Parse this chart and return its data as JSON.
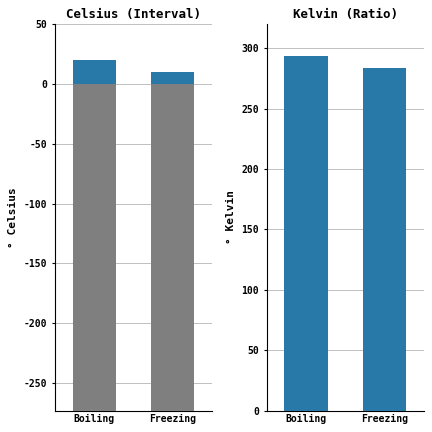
{
  "celsius_title": "Celsius (Interval)",
  "kelvin_title": "Kelvin (Ratio)",
  "categories": [
    "Boiling",
    "Freezing"
  ],
  "celsius_ylabel": "° Celsius",
  "kelvin_ylabel": "° Kelvin",
  "boiling_celsius": 20,
  "freezing_celsius": 10,
  "boiling_kelvin": 293.15,
  "freezing_kelvin": 283.15,
  "absolute_zero_celsius": -273.15,
  "celsius_ylim": [
    -273,
    50
  ],
  "kelvin_ylim": [
    0,
    320
  ],
  "celsius_yticks": [
    50,
    0,
    -50,
    -100,
    -150,
    -200,
    -250
  ],
  "kelvin_yticks": [
    0,
    50,
    100,
    150,
    200,
    250,
    300
  ],
  "blue_color": "#2878a8",
  "gray_color": "#7f7f7f",
  "background_color": "#ffffff",
  "grid_color": "#c0c0c0",
  "title_fontsize": 9,
  "label_fontsize": 8,
  "tick_fontsize": 7,
  "bar_width": 0.55
}
